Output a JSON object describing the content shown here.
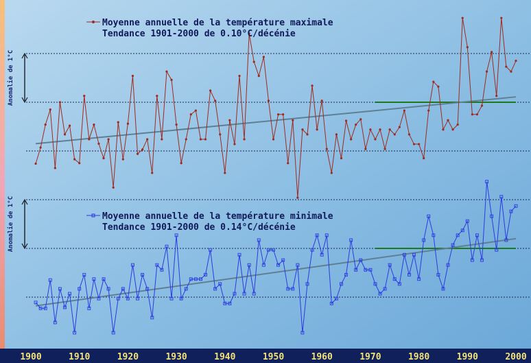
{
  "chart_data": [
    {
      "type": "line",
      "title": "Moyenne annuelle de la température maximale",
      "subtitle": "Tendance 1901-2000 de 0.10°C/décénie",
      "y_label": "Anomalie de 1°C",
      "scale_bar": [
        0,
        1
      ],
      "xlim": [
        1900,
        2000
      ],
      "ylim": [
        -2,
        2
      ],
      "gridlines": [
        -2,
        -1,
        0,
        1
      ],
      "x": [
        1901,
        1902,
        1903,
        1904,
        1905,
        1906,
        1907,
        1908,
        1909,
        1910,
        1911,
        1912,
        1913,
        1914,
        1915,
        1916,
        1917,
        1918,
        1919,
        1920,
        1921,
        1922,
        1923,
        1924,
        1925,
        1926,
        1927,
        1928,
        1929,
        1930,
        1931,
        1932,
        1933,
        1934,
        1935,
        1936,
        1937,
        1938,
        1939,
        1940,
        1941,
        1942,
        1943,
        1944,
        1945,
        1946,
        1947,
        1948,
        1949,
        1950,
        1951,
        1952,
        1953,
        1954,
        1955,
        1956,
        1957,
        1958,
        1959,
        1960,
        1961,
        1962,
        1963,
        1964,
        1965,
        1966,
        1967,
        1968,
        1969,
        1970,
        1971,
        1972,
        1973,
        1974,
        1975,
        1976,
        1977,
        1978,
        1979,
        1980,
        1981,
        1982,
        1983,
        1984,
        1985,
        1986,
        1987,
        1988,
        1989,
        1990,
        1991,
        1992,
        1993,
        1994,
        1995,
        1996,
        1997,
        1998,
        1999,
        2000
      ],
      "series": [
        {
          "name": "Moyenne annuelle de la température maximale",
          "color": "#a02a1e",
          "values": [
            -1.26,
            -0.93,
            -0.46,
            -0.15,
            -1.35,
            0.0,
            -0.66,
            -0.48,
            -1.17,
            -1.25,
            0.13,
            -0.76,
            -0.46,
            -0.85,
            -1.15,
            -0.76,
            -1.75,
            -0.41,
            -1.17,
            -0.44,
            0.54,
            -1.06,
            -0.97,
            -0.76,
            -1.45,
            0.13,
            -0.76,
            0.63,
            0.46,
            -0.46,
            -1.25,
            -0.76,
            -0.25,
            -0.17,
            -0.76,
            -0.76,
            0.24,
            0.03,
            -0.66,
            -1.45,
            -0.37,
            -0.86,
            0.54,
            -0.76,
            1.41,
            0.83,
            0.54,
            0.93,
            0.03,
            -0.76,
            -0.25,
            -0.25,
            -1.25,
            -0.37,
            -1.96,
            -0.56,
            -0.66,
            0.34,
            -0.56,
            0.03,
            -0.96,
            -1.45,
            -0.66,
            -1.15,
            -0.38,
            -0.76,
            -0.46,
            -0.35,
            -0.96,
            -0.56,
            -0.76,
            -0.56,
            -0.96,
            -0.56,
            -0.66,
            -0.51,
            -0.17,
            -0.66,
            -0.86,
            -0.86,
            -1.15,
            -0.17,
            0.42,
            0.32,
            -0.56,
            -0.37,
            -0.56,
            -0.46,
            1.73,
            1.13,
            -0.25,
            -0.25,
            -0.07,
            0.63,
            1.03,
            0.13,
            1.73,
            0.73,
            0.63,
            0.85
          ]
        }
      ],
      "trend": {
        "color": "#5f7f93",
        "x": [
          1901,
          2000
        ],
        "values": [
          -0.85,
          0.11
        ]
      },
      "reference": {
        "color": "#1c7a1c",
        "x": [
          1971,
          2000
        ],
        "value": 0
      }
    },
    {
      "type": "line",
      "title": "Moyenne annuelle de la température minimale",
      "subtitle": "Tendance 1901-2000 de 0.14°C/décénie",
      "y_label": "Anomalie de 1°C",
      "scale_bar": [
        0,
        1
      ],
      "xlim": [
        1900,
        2000
      ],
      "ylim": [
        -2,
        2
      ],
      "gridlines": [
        -1,
        0,
        1
      ],
      "xticks": [
        1900,
        1910,
        1920,
        1930,
        1940,
        1950,
        1960,
        1970,
        1980,
        1990,
        2000
      ],
      "x": [
        1901,
        1902,
        1903,
        1904,
        1905,
        1906,
        1907,
        1908,
        1909,
        1910,
        1911,
        1912,
        1913,
        1914,
        1915,
        1916,
        1917,
        1918,
        1919,
        1920,
        1921,
        1922,
        1923,
        1924,
        1925,
        1926,
        1927,
        1928,
        1929,
        1930,
        1931,
        1932,
        1933,
        1934,
        1935,
        1936,
        1937,
        1938,
        1939,
        1940,
        1941,
        1942,
        1943,
        1944,
        1945,
        1946,
        1947,
        1948,
        1949,
        1950,
        1951,
        1952,
        1953,
        1954,
        1955,
        1956,
        1957,
        1958,
        1959,
        1960,
        1961,
        1962,
        1963,
        1964,
        1965,
        1966,
        1967,
        1968,
        1969,
        1970,
        1971,
        1972,
        1973,
        1974,
        1975,
        1976,
        1977,
        1978,
        1979,
        1980,
        1981,
        1982,
        1983,
        1984,
        1985,
        1986,
        1987,
        1988,
        1989,
        1990,
        1991,
        1992,
        1993,
        1994,
        1995,
        1996,
        1997,
        1998,
        1999,
        2000
      ],
      "series": [
        {
          "name": "Moyenne annuelle de la température minimale",
          "color": "#2a3ae0",
          "values": [
            -1.11,
            -1.23,
            -1.23,
            -0.65,
            -1.52,
            -0.83,
            -1.21,
            -0.93,
            -1.73,
            -0.83,
            -0.54,
            -1.23,
            -0.63,
            -1.03,
            -0.63,
            -0.83,
            -1.73,
            -1.03,
            -0.83,
            -1.03,
            -0.34,
            -1.03,
            -0.54,
            -0.83,
            -1.42,
            -0.34,
            -0.44,
            0.04,
            -1.03,
            0.27,
            -1.03,
            -0.83,
            -0.63,
            -0.63,
            -0.63,
            -0.54,
            -0.03,
            -0.83,
            -0.73,
            -1.13,
            -1.13,
            -0.93,
            -0.13,
            -0.93,
            -0.34,
            -0.93,
            0.17,
            -0.34,
            -0.03,
            -0.03,
            -0.34,
            -0.24,
            -0.83,
            -0.83,
            -0.34,
            -1.73,
            -0.73,
            -0.03,
            0.27,
            -0.13,
            0.27,
            -1.13,
            -1.03,
            -0.73,
            -0.54,
            0.17,
            -0.44,
            -0.24,
            -0.44,
            -0.44,
            -0.73,
            -0.93,
            -0.83,
            -0.34,
            -0.63,
            -0.73,
            -0.13,
            -0.54,
            -0.13,
            -0.63,
            0.17,
            0.66,
            0.27,
            -0.54,
            -0.83,
            -0.34,
            0.07,
            0.27,
            0.37,
            0.56,
            -0.24,
            0.27,
            -0.24,
            1.37,
            0.66,
            -0.03,
            1.06,
            0.17,
            0.76,
            0.87
          ]
        }
      ],
      "trend": {
        "color": "#5f7f93",
        "x": [
          1901,
          2000
        ],
        "values": [
          -1.18,
          0.2
        ]
      },
      "reference": {
        "color": "#1c7a1c",
        "x": [
          1971,
          2000
        ],
        "value": 0
      }
    }
  ]
}
